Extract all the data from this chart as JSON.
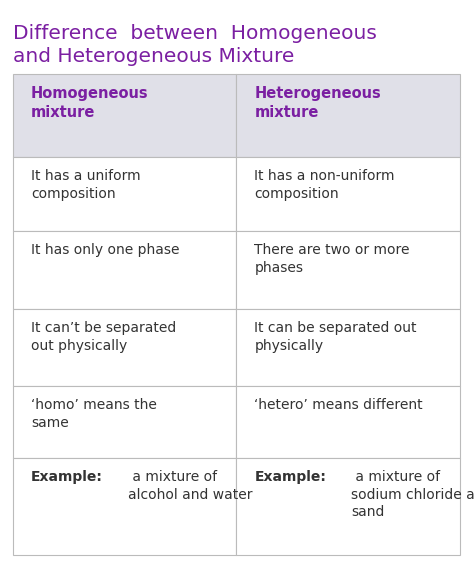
{
  "title_line1": "Difference  between  Homogeneous",
  "title_line2": "and Heterogeneous Mixture",
  "title_color": "#7B1FA2",
  "background_color": "#FFFFFF",
  "header_bg_color": "#E0E0E8",
  "table_border_color": "#BBBBBB",
  "header_text_color": "#7B1FA2",
  "body_text_color": "#333333",
  "col1_header": "Homogeneous\nmixture",
  "col2_header": "Heterogeneous\nmixture",
  "rows": [
    [
      "It has a uniform\ncomposition",
      "It has a non-uniform\ncomposition"
    ],
    [
      "It has only one phase",
      "There are two or more\nphases"
    ],
    [
      "It can’t be separated\nout physically",
      "It can be separated out\nphysically"
    ],
    [
      "‘homo’ means the\nsame",
      "‘hetero’ means different"
    ],
    [
      "a mixture of\nalcohol and water",
      "a mixture of\nsodium chloride and\nsand"
    ]
  ],
  "example_prefix": "Example:",
  "title_fontsize": 14.5,
  "header_fontsize": 10.5,
  "body_fontsize": 10.0
}
